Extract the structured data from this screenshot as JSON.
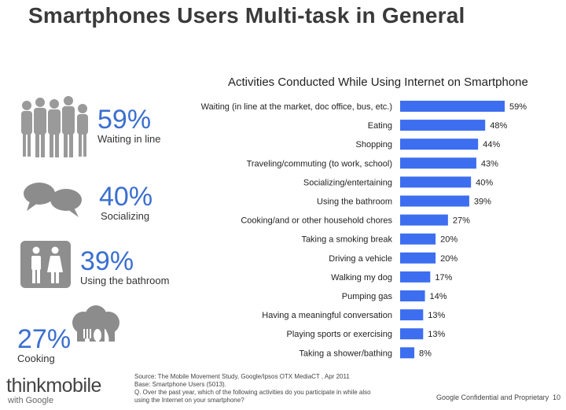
{
  "title": "Smartphones Users Multi-task in General",
  "stats": [
    {
      "pct": "59%",
      "label": "Waiting in line"
    },
    {
      "pct": "40%",
      "label": "Socializing"
    },
    {
      "pct": "39%",
      "label": "Using the bathroom"
    },
    {
      "pct": "27%",
      "label": "Cooking"
    }
  ],
  "icons": {
    "people": "people-group-icon",
    "chat": "speech-bubbles-icon",
    "restroom": "restroom-icon",
    "cooking": "chef-hat-utensils-icon"
  },
  "colors": {
    "bar": "#3d6ef0",
    "stat": "#3b6fcf"
  },
  "chart_data": {
    "type": "bar",
    "orientation": "horizontal",
    "title": "Activities Conducted While Using Internet on Smartphone",
    "categories": [
      "Waiting (in line at the market, doc office, bus, etc.)",
      "Eating",
      "Shopping",
      "Traveling/commuting (to work, school)",
      "Socializing/entertaining",
      "Using the bathroom",
      "Cooking/and or other household chores",
      "Taking a smoking break",
      "Driving a vehicle",
      "Walking my dog",
      "Pumping gas",
      "Having a meaningful conversation",
      "Playing sports or exercising",
      "Taking a shower/bathing"
    ],
    "values": [
      59,
      48,
      44,
      43,
      40,
      39,
      27,
      20,
      20,
      17,
      14,
      13,
      13,
      8
    ],
    "value_labels": [
      "59%",
      "48%",
      "44%",
      "43%",
      "40%",
      "39%",
      "27%",
      "20%",
      "20%",
      "17%",
      "14%",
      "13%",
      "13%",
      "8%"
    ],
    "xlim": [
      0,
      59
    ],
    "grid": false,
    "legend": "none"
  },
  "footer": {
    "source_lines": [
      "Source: The Mobile Movement Study, Google/Ipsos OTX MediaCT , Apr 2011",
      "Base:   Smartphone Users (5013).",
      "Q.  Over the past year, which of the following activities do you participate in while also",
      "using the Internet on your smartphone?"
    ],
    "logo_think": "think",
    "logo_mobile": "mobile",
    "logo_with": "with Google",
    "confidential": "Google Confidential and Proprietary",
    "page": "10"
  }
}
